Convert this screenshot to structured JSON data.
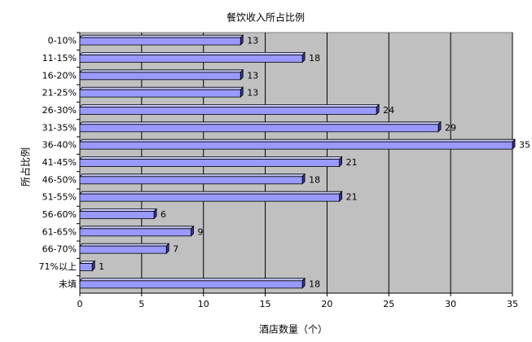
{
  "chart_data": {
    "type": "bar",
    "orientation": "horizontal",
    "title": "餐饮收入所占比例",
    "x_label": "酒店数量（个）",
    "y_label": "所占比例",
    "categories": [
      "0-10%",
      "11-15%",
      "16-20%",
      "21-25%",
      "26-30%",
      "31-35%",
      "36-40%",
      "41-45%",
      "46-50%",
      "51-55%",
      "56-60%",
      "61-65%",
      "66-70%",
      "71%以上",
      "未填"
    ],
    "values": [
      13,
      18,
      13,
      13,
      24,
      29,
      35,
      21,
      18,
      21,
      6,
      9,
      7,
      1,
      18
    ],
    "color": "#9999ff",
    "xlim": [
      0,
      35
    ],
    "xticks": [
      0,
      5,
      10,
      15,
      20,
      25,
      30,
      35
    ],
    "grid": true
  }
}
